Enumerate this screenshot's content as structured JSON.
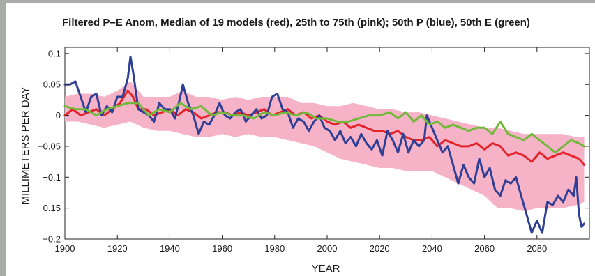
{
  "chart_data": {
    "type": "line",
    "title": "Filtered P–E Anom, Median of 19 models (red), 25th to 75th (pink); 50th P (blue), 50th E (green)",
    "xlabel": "YEAR",
    "ylabel": "MILLIMETERS PER DAY",
    "xlim": [
      1900,
      2100
    ],
    "ylim": [
      -0.2,
      0.11
    ],
    "x_ticks": [
      1900,
      1920,
      1940,
      1960,
      1980,
      2000,
      2020,
      2040,
      2060,
      2080
    ],
    "y_ticks": [
      0.1,
      0.05,
      0,
      -0.05,
      -0.1,
      -0.15,
      -0.2
    ],
    "x_tick_labels": [
      "1900",
      "1920",
      "1940",
      "1960",
      "1980",
      "2000",
      "2020",
      "2040",
      "2060",
      "2080"
    ],
    "y_tick_labels": [
      "0.1",
      "0.05",
      "0",
      "−0.05",
      "−0.1",
      "−0.15",
      "−0.2"
    ],
    "grid": false,
    "colors": {
      "median": "#e3242b",
      "band": "#f6b3c8",
      "p50": "#2f3f94",
      "e50": "#72b83a"
    },
    "band": {
      "x": [
        1900,
        1905,
        1910,
        1915,
        1920,
        1925,
        1930,
        1935,
        1940,
        1945,
        1950,
        1955,
        1960,
        1965,
        1970,
        1975,
        1980,
        1985,
        1990,
        1995,
        2000,
        2005,
        2010,
        2015,
        2020,
        2025,
        2030,
        2035,
        2040,
        2045,
        2050,
        2055,
        2060,
        2065,
        2070,
        2075,
        2080,
        2085,
        2090,
        2095,
        2098
      ],
      "upper": [
        0.03,
        0.035,
        0.035,
        0.03,
        0.04,
        0.055,
        0.03,
        0.03,
        0.03,
        0.04,
        0.03,
        0.03,
        0.025,
        0.03,
        0.025,
        0.03,
        0.03,
        0.03,
        0.02,
        0.02,
        0.015,
        0.015,
        0.02,
        0.015,
        0.01,
        0.01,
        0.005,
        0.005,
        0.0,
        -0.005,
        -0.01,
        -0.015,
        -0.02,
        -0.02,
        -0.025,
        -0.03,
        -0.03,
        -0.03,
        -0.03,
        -0.035,
        -0.035
      ],
      "lower": [
        -0.01,
        -0.01,
        -0.015,
        -0.02,
        -0.015,
        -0.01,
        -0.02,
        -0.025,
        -0.025,
        -0.03,
        -0.035,
        -0.035,
        -0.03,
        -0.035,
        -0.03,
        -0.035,
        -0.035,
        -0.04,
        -0.045,
        -0.05,
        -0.06,
        -0.07,
        -0.075,
        -0.08,
        -0.085,
        -0.085,
        -0.09,
        -0.09,
        -0.09,
        -0.1,
        -0.11,
        -0.12,
        -0.13,
        -0.15,
        -0.15,
        -0.155,
        -0.15,
        -0.15,
        -0.15,
        -0.145,
        -0.14
      ]
    },
    "series": [
      {
        "name": "Median of 19 models",
        "role": "median",
        "x": [
          1900,
          1903,
          1906,
          1909,
          1912,
          1915,
          1918,
          1921,
          1924,
          1926,
          1928,
          1931,
          1934,
          1937,
          1940,
          1943,
          1946,
          1949,
          1952,
          1955,
          1958,
          1961,
          1964,
          1967,
          1970,
          1973,
          1976,
          1979,
          1982,
          1985,
          1988,
          1991,
          1994,
          1997,
          2000,
          2003,
          2006,
          2009,
          2012,
          2015,
          2018,
          2021,
          2024,
          2027,
          2030,
          2033,
          2036,
          2039,
          2042,
          2045,
          2048,
          2051,
          2054,
          2057,
          2060,
          2063,
          2066,
          2069,
          2072,
          2075,
          2078,
          2081,
          2084,
          2087,
          2090,
          2093,
          2096,
          2098
        ],
        "values": [
          0.0,
          0.01,
          0.0,
          0.005,
          0.01,
          0.0,
          0.01,
          0.02,
          0.04,
          0.03,
          0.01,
          0.01,
          0.0,
          0.005,
          0.01,
          0.0,
          0.01,
          0.005,
          -0.005,
          0.0,
          0.005,
          0.005,
          0.0,
          0.005,
          0.0,
          0.005,
          0.01,
          0.0,
          0.005,
          0.01,
          0.0,
          0.005,
          -0.005,
          0.0,
          -0.01,
          -0.015,
          -0.01,
          -0.02,
          -0.015,
          -0.02,
          -0.025,
          -0.025,
          -0.03,
          -0.025,
          -0.035,
          -0.04,
          -0.04,
          -0.035,
          -0.05,
          -0.04,
          -0.045,
          -0.05,
          -0.05,
          -0.045,
          -0.055,
          -0.045,
          -0.05,
          -0.065,
          -0.06,
          -0.065,
          -0.075,
          -0.06,
          -0.07,
          -0.065,
          -0.06,
          -0.065,
          -0.07,
          -0.08
        ]
      },
      {
        "name": "50th P",
        "role": "p50",
        "x": [
          1900,
          1902,
          1904,
          1906,
          1908,
          1910,
          1912,
          1914,
          1916,
          1918,
          1920,
          1922,
          1924,
          1925,
          1926,
          1928,
          1930,
          1932,
          1934,
          1936,
          1938,
          1940,
          1942,
          1944,
          1945,
          1947,
          1949,
          1951,
          1953,
          1955,
          1957,
          1959,
          1961,
          1963,
          1965,
          1967,
          1969,
          1971,
          1973,
          1975,
          1977,
          1979,
          1981,
          1983,
          1985,
          1987,
          1989,
          1991,
          1993,
          1995,
          1997,
          1999,
          2001,
          2003,
          2005,
          2007,
          2009,
          2011,
          2013,
          2015,
          2017,
          2019,
          2021,
          2023,
          2025,
          2027,
          2029,
          2031,
          2033,
          2035,
          2037,
          2038,
          2040,
          2042,
          2044,
          2046,
          2048,
          2050,
          2052,
          2054,
          2056,
          2058,
          2060,
          2062,
          2064,
          2066,
          2068,
          2070,
          2072,
          2074,
          2076,
          2078,
          2080,
          2082,
          2084,
          2086,
          2088,
          2090,
          2092,
          2094,
          2095,
          2096,
          2097,
          2098
        ],
        "values": [
          0.05,
          0.05,
          0.055,
          0.03,
          0.005,
          0.03,
          0.035,
          0.0,
          0.015,
          0.005,
          0.03,
          0.03,
          0.06,
          0.095,
          0.07,
          0.01,
          0.005,
          0.0,
          -0.01,
          0.02,
          0.01,
          0.01,
          -0.005,
          0.03,
          0.05,
          0.02,
          0.0,
          -0.03,
          -0.01,
          -0.015,
          0.0,
          0.02,
          0.0,
          -0.005,
          0.005,
          0.01,
          -0.01,
          0.0,
          0.01,
          -0.005,
          0.0,
          0.03,
          0.035,
          0.01,
          0.005,
          -0.02,
          -0.005,
          -0.01,
          -0.025,
          -0.01,
          0.0,
          -0.02,
          -0.025,
          -0.04,
          -0.025,
          -0.045,
          -0.035,
          -0.05,
          -0.03,
          -0.045,
          -0.055,
          -0.04,
          -0.065,
          -0.025,
          -0.04,
          -0.06,
          -0.03,
          -0.06,
          -0.04,
          -0.05,
          -0.04,
          0.0,
          -0.02,
          -0.04,
          -0.06,
          -0.05,
          -0.08,
          -0.11,
          -0.08,
          -0.1,
          -0.11,
          -0.07,
          -0.1,
          -0.085,
          -0.12,
          -0.13,
          -0.105,
          -0.11,
          -0.1,
          -0.13,
          -0.16,
          -0.19,
          -0.17,
          -0.19,
          -0.14,
          -0.145,
          -0.13,
          -0.14,
          -0.12,
          -0.13,
          -0.1,
          -0.16,
          -0.18,
          -0.175
        ]
      },
      {
        "name": "50th E",
        "role": "e50",
        "x": [
          1900,
          1904,
          1908,
          1912,
          1916,
          1920,
          1924,
          1928,
          1932,
          1936,
          1940,
          1944,
          1948,
          1952,
          1956,
          1960,
          1964,
          1968,
          1972,
          1976,
          1980,
          1984,
          1988,
          1992,
          1996,
          2000,
          2004,
          2008,
          2012,
          2016,
          2020,
          2024,
          2027,
          2030,
          2033,
          2036,
          2039,
          2042,
          2045,
          2048,
          2051,
          2054,
          2057,
          2060,
          2063,
          2066,
          2069,
          2072,
          2075,
          2078,
          2081,
          2084,
          2087,
          2090,
          2093,
          2096,
          2098
        ],
        "values": [
          0.015,
          0.01,
          0.01,
          0.0,
          0.01,
          0.015,
          0.02,
          0.02,
          0.0,
          0.01,
          0.005,
          0.02,
          0.01,
          0.015,
          0.0,
          0.005,
          0.0,
          0.0,
          -0.005,
          0.005,
          0.0,
          0.005,
          0.0,
          0.005,
          -0.005,
          -0.005,
          -0.01,
          -0.01,
          -0.005,
          0.0,
          0.0,
          0.005,
          -0.005,
          0.005,
          -0.01,
          0.0,
          -0.015,
          -0.01,
          -0.02,
          -0.015,
          -0.02,
          -0.025,
          -0.02,
          -0.02,
          -0.03,
          -0.01,
          -0.03,
          -0.035,
          -0.04,
          -0.03,
          -0.04,
          -0.05,
          -0.06,
          -0.05,
          -0.04,
          -0.045,
          -0.05
        ]
      }
    ]
  }
}
